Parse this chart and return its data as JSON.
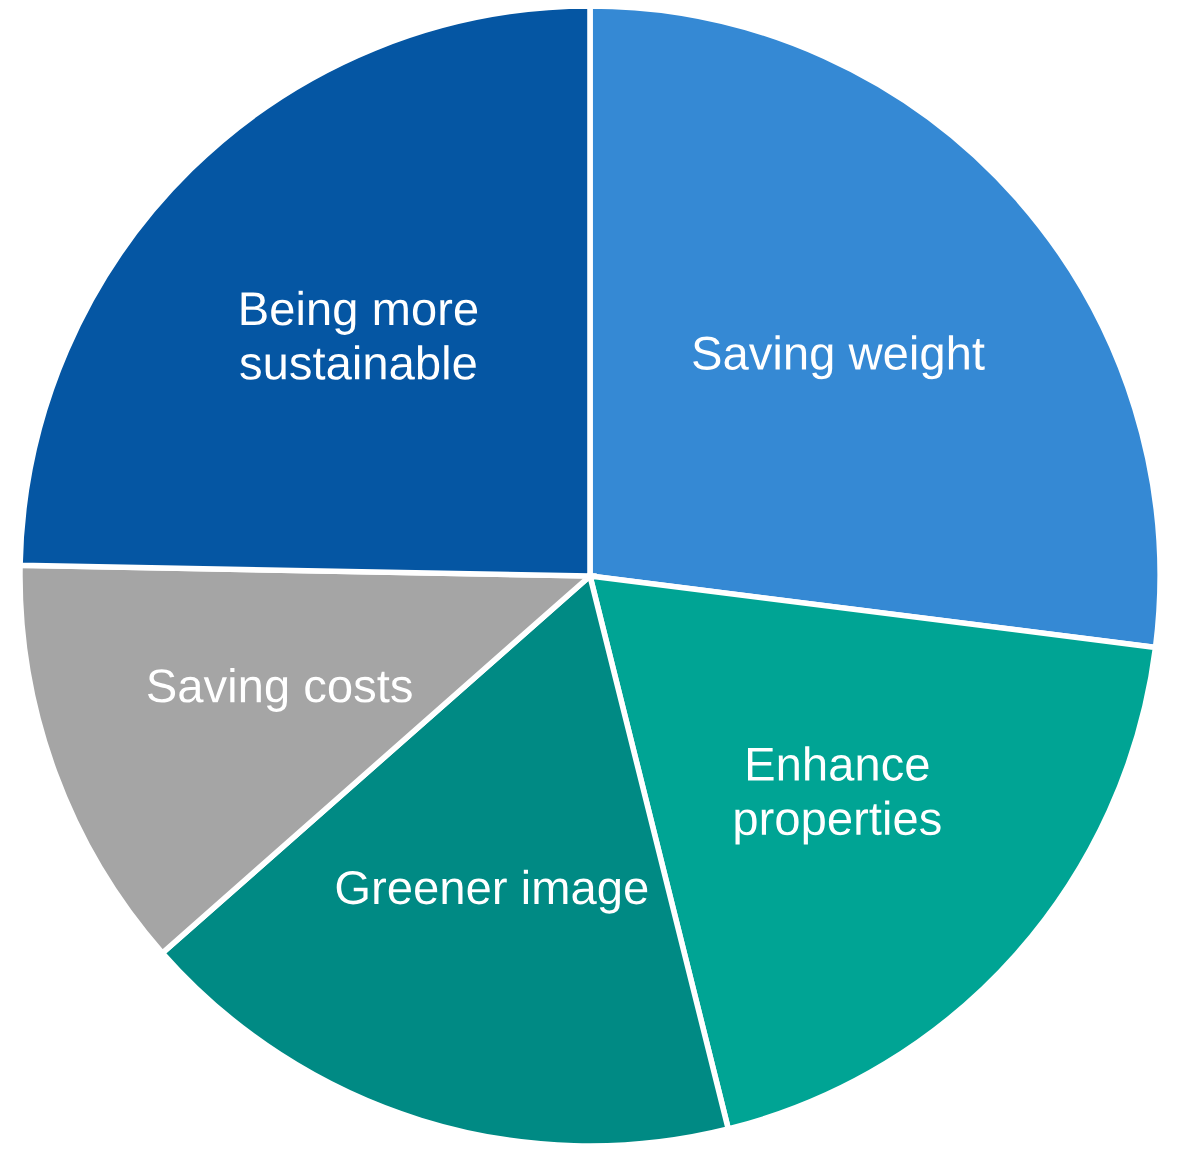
{
  "chart_data": {
    "type": "pie",
    "categories": [
      "Saving weight",
      "Enhance properties",
      "Greener image",
      "Saving costs",
      "Being more sustainable"
    ],
    "values": [
      27,
      19.1,
      17.4,
      11.8,
      24.7
    ],
    "colors": [
      "#3589d4",
      "#00a494",
      "#008a84",
      "#a5a5a5",
      "#0556a3"
    ],
    "legend": false
  }
}
